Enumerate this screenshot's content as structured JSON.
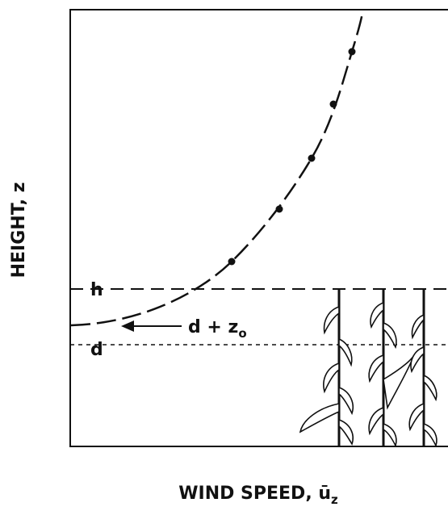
{
  "axes": {
    "y_label": "HEIGHT, z",
    "x_label": "WIND SPEED, ū",
    "x_label_subscript": "z"
  },
  "levels": {
    "h": "h",
    "d": "d",
    "d_plus_z0": "d + z",
    "d_plus_z0_subscript": "o"
  }
}
